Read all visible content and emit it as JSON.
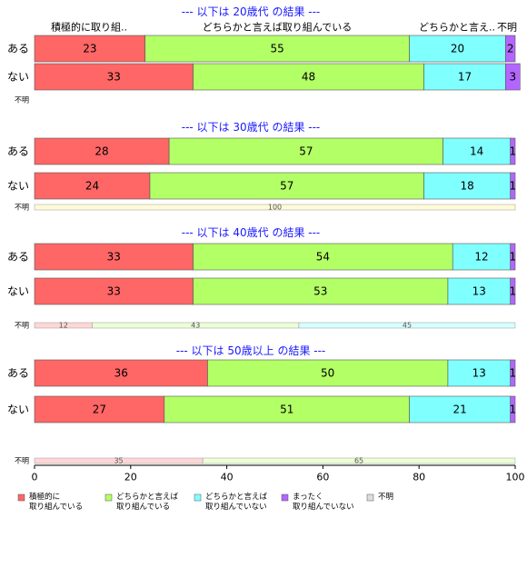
{
  "chart_data": {
    "type": "bar",
    "orientation": "horizontal-stacked-100",
    "xlim": [
      0,
      100
    ],
    "x_ticks": [
      "0",
      "20",
      "40",
      "60",
      "80",
      "100"
    ],
    "legend_position": "bottom",
    "grid": false,
    "categories_legend": [
      {
        "label": "積極的に\n取り組んでいる",
        "color": "#ff6666"
      },
      {
        "label": "どちらかと言えば\n取り組んでいる",
        "color": "#b3ff66"
      },
      {
        "label": "どちらかと言えば\n取り組んでいない",
        "color": "#80ffff"
      },
      {
        "label": "まったく\n取り組んでいない",
        "color": "#b366ff"
      },
      {
        "label": "不明",
        "color": "#dddddd"
      }
    ],
    "top_column_labels": [
      "積極的に取り組..",
      "どちらかと言えば取り組んでいる",
      "どちらかと言え..",
      "不明"
    ],
    "panels": [
      {
        "title": "--- 以下は 20歳代 の結果 ---",
        "rows": [
          {
            "label": "ある",
            "values": [
              23,
              55,
              20,
              2,
              0
            ]
          },
          {
            "label": "ない",
            "values": [
              33,
              48,
              17,
              3,
              0
            ]
          }
        ],
        "unknown_label": "不明",
        "unknown_values": []
      },
      {
        "title": "--- 以下は 30歳代 の結果 ---",
        "rows": [
          {
            "label": "ある",
            "values": [
              28,
              57,
              14,
              1,
              0
            ]
          },
          {
            "label": "ない",
            "values": [
              24,
              57,
              18,
              1,
              0
            ]
          }
        ],
        "unknown_label": "不明",
        "unknown_values": [
          0,
          0,
          0,
          0,
          100
        ]
      },
      {
        "title": "--- 以下は 40歳代 の結果 ---",
        "rows": [
          {
            "label": "ある",
            "values": [
              33,
              54,
              12,
              1,
              0
            ]
          },
          {
            "label": "ない",
            "values": [
              33,
              53,
              13,
              1,
              0
            ]
          }
        ],
        "unknown_label": "不明",
        "unknown_values": [
          12,
          43,
          45,
          0,
          0
        ]
      },
      {
        "title": "--- 以下は 50歳以上 の結果 ---",
        "rows": [
          {
            "label": "ある",
            "values": [
              36,
              50,
              13,
              1,
              0
            ]
          },
          {
            "label": "ない",
            "values": [
              27,
              51,
              21,
              1,
              0
            ]
          }
        ],
        "unknown_label": "不明",
        "unknown_values": [
          35,
          65,
          0,
          0,
          0
        ]
      }
    ]
  }
}
